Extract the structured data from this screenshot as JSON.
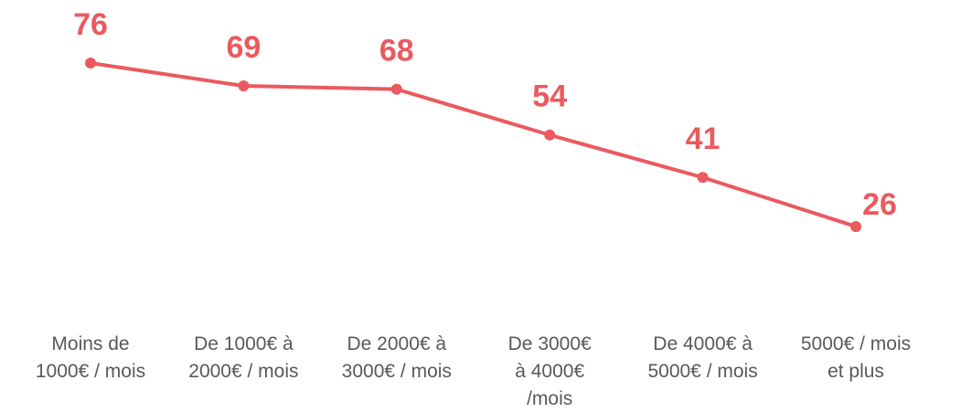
{
  "chart_data": {
    "type": "line",
    "categories": [
      "Moins de\n1000€ / mois",
      "De 1000€ à\n2000€ / mois",
      "De 2000€ à\n3000€ / mois",
      "De 3000€\nà 4000€\n/mois",
      "De 4000€ à\n5000€ / mois",
      "5000€ / mois\net plus"
    ],
    "series": [
      {
        "color": "#ea5a5f",
        "values": [
          76,
          69,
          68,
          54,
          41,
          26
        ]
      }
    ],
    "ylim": [
      0,
      95
    ]
  }
}
